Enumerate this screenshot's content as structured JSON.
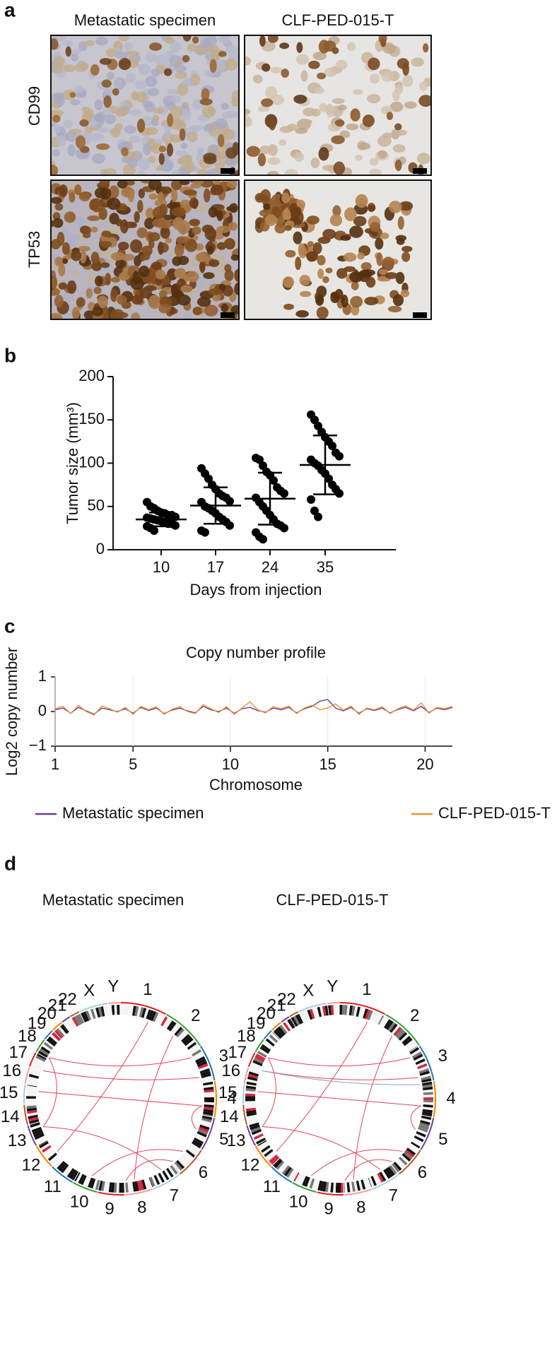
{
  "panel_a": {
    "label": "a",
    "columns": [
      "Metastatic specimen",
      "CLF-PED-015-T"
    ],
    "rows": [
      "CD99",
      "TP53"
    ]
  },
  "chart_data": [
    {
      "type": "dot_plot",
      "panel_label": "b",
      "x_label": "Days from injection",
      "y_label": "Tumor size (mm³)",
      "categories": [
        "10",
        "17",
        "24",
        "35"
      ],
      "color": "#000000",
      "groups": [
        {
          "values": [
            55,
            50,
            48,
            45,
            43,
            42,
            40,
            40,
            38,
            37,
            36,
            35,
            34,
            33,
            32,
            30,
            30,
            28,
            27,
            25,
            22
          ],
          "mean": 35,
          "sd": 8
        },
        {
          "values": [
            94,
            88,
            82,
            75,
            70,
            65,
            62,
            60,
            56,
            55,
            50,
            48,
            45,
            42,
            38,
            35,
            32,
            28,
            22,
            20
          ],
          "mean": 51,
          "sd": 21
        },
        {
          "values": [
            106,
            104,
            97,
            90,
            86,
            80,
            72,
            68,
            65,
            60,
            55,
            50,
            45,
            40,
            35,
            30,
            28,
            25,
            20,
            15,
            12
          ],
          "mean": 59,
          "sd": 30
        },
        {
          "values": [
            156,
            150,
            143,
            136,
            130,
            125,
            120,
            112,
            108,
            104,
            100,
            97,
            92,
            88,
            82,
            75,
            70,
            65,
            58,
            45,
            38
          ],
          "mean": 98,
          "sd": 34
        }
      ],
      "ylim": [
        0,
        200
      ],
      "yticks": [
        0,
        50,
        100,
        150,
        200
      ]
    },
    {
      "type": "line",
      "panel_label": "c",
      "title": "Copy number profile",
      "x_label": "Chromosome",
      "y_label": "Log2 copy number",
      "x": [
        1,
        1.4,
        1.8,
        2.2,
        2.6,
        3,
        3.4,
        3.8,
        4.2,
        4.6,
        5,
        5.4,
        5.8,
        6.2,
        6.6,
        7,
        7.4,
        7.8,
        8.2,
        8.6,
        9,
        9.4,
        9.8,
        10.2,
        10.6,
        11,
        11.4,
        11.8,
        12.2,
        12.6,
        13,
        13.4,
        13.8,
        14.2,
        14.6,
        15,
        15.4,
        15.8,
        16.2,
        16.6,
        17,
        17.4,
        17.8,
        18.2,
        18.6,
        19,
        19.4,
        19.8,
        20.2,
        20.6,
        21,
        21.4
      ],
      "series": [
        {
          "name": "Metastatic specimen",
          "color": "#6a3d9a",
          "values": [
            0.05,
            0.1,
            -0.05,
            0.12,
            0.02,
            -0.08,
            0.1,
            0.05,
            0.0,
            0.08,
            -0.05,
            0.12,
            0.03,
            0.1,
            -0.06,
            0.04,
            0.1,
            0.02,
            -0.04,
            0.15,
            0.05,
            0.0,
            0.1,
            -0.05,
            0.08,
            0.12,
            0.03,
            -0.02,
            0.1,
            0.05,
            0.12,
            -0.04,
            0.08,
            0.15,
            0.3,
            0.35,
            0.1,
            0.02,
            0.12,
            -0.05,
            0.08,
            0.03,
            0.1,
            -0.04,
            0.06,
            0.12,
            0.02,
            0.15,
            -0.03,
            0.1,
            0.05,
            0.12
          ]
        },
        {
          "name": "CLF-PED-015-T",
          "color": "#e8922c",
          "values": [
            0.08,
            0.15,
            -0.06,
            0.18,
            0.0,
            -0.1,
            0.16,
            0.08,
            -0.02,
            0.12,
            -0.08,
            0.15,
            0.05,
            0.14,
            -0.08,
            0.06,
            0.14,
            0.0,
            -0.06,
            0.2,
            0.08,
            -0.03,
            0.14,
            -0.08,
            0.1,
            0.28,
            0.05,
            -0.04,
            0.14,
            0.08,
            0.16,
            -0.06,
            0.1,
            0.18,
            0.05,
            0.1,
            0.22,
            0.04,
            0.16,
            -0.08,
            0.1,
            0.05,
            0.14,
            -0.06,
            0.08,
            0.16,
            0.04,
            0.25,
            -0.05,
            0.12,
            0.08,
            0.15
          ]
        }
      ],
      "xlim": [
        1,
        21.4
      ],
      "xticks": [
        1,
        5,
        10,
        15,
        20
      ],
      "ylim": [
        -1,
        1
      ],
      "yticks": [
        {
          "value": -1,
          "label": "−1"
        },
        0,
        1
      ]
    }
  ],
  "panel_d": {
    "label": "d",
    "titles": [
      "Metastatic specimen",
      "CLF-PED-015-T"
    ],
    "chromosomes": [
      "1",
      "2",
      "3",
      "4",
      "5",
      "6",
      "7",
      "8",
      "9",
      "10",
      "11",
      "12",
      "13",
      "14",
      "15",
      "16",
      "17",
      "18",
      "19",
      "20",
      "21",
      "22",
      "X",
      "Y"
    ]
  }
}
